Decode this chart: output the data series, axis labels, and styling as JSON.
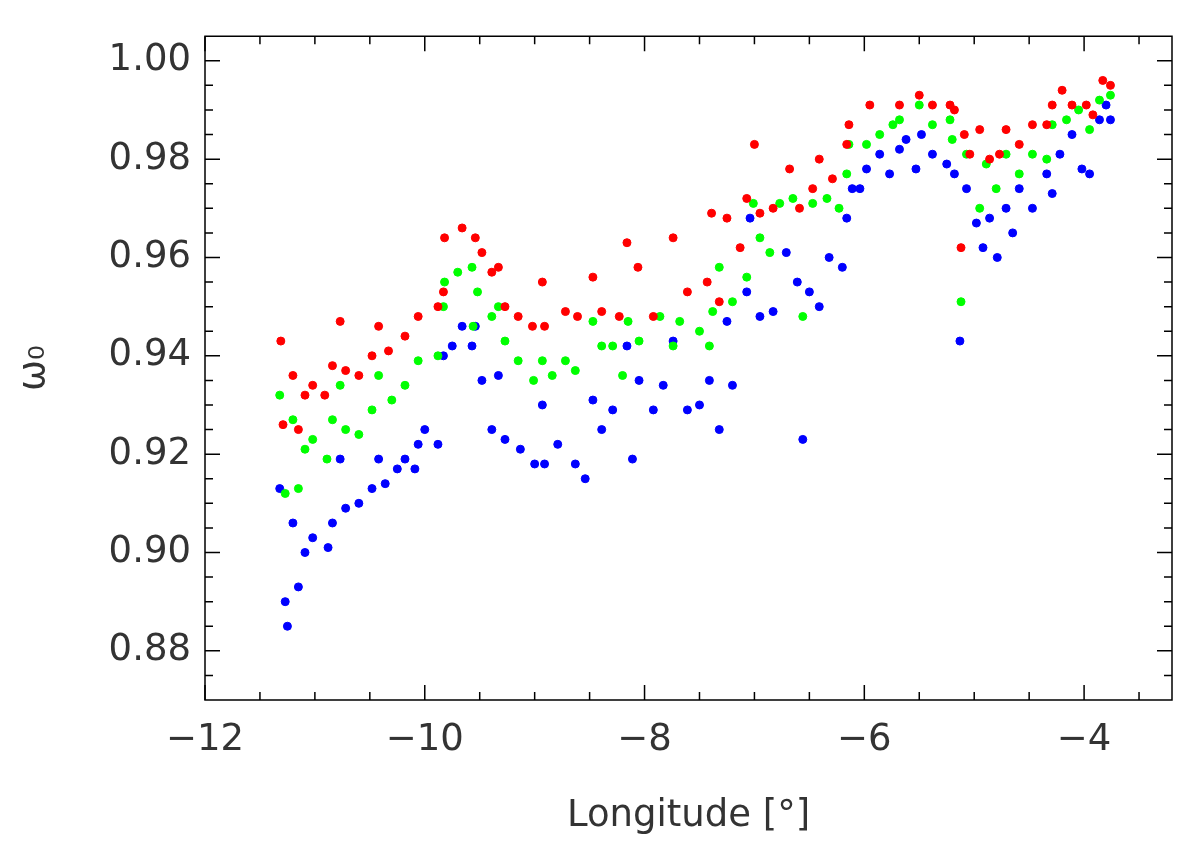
{
  "chart_data": {
    "type": "scatter",
    "xlabel": "Longitude [°]",
    "ylabel": "ω₀",
    "marker": "circle",
    "xlim": [
      -12,
      -3.2
    ],
    "ylim": [
      0.87,
      1.005
    ],
    "xticks": [
      {
        "value": -12,
        "label": "−12"
      },
      {
        "value": -11.5,
        "label": null
      },
      {
        "value": -11,
        "label": null
      },
      {
        "value": -10.5,
        "label": null
      },
      {
        "value": -10,
        "label": "−10"
      },
      {
        "value": -9.5,
        "label": null
      },
      {
        "value": -9,
        "label": null
      },
      {
        "value": -8.5,
        "label": null
      },
      {
        "value": -8,
        "label": "−8"
      },
      {
        "value": -7.5,
        "label": null
      },
      {
        "value": -7,
        "label": null
      },
      {
        "value": -6.5,
        "label": null
      },
      {
        "value": -6,
        "label": "−6"
      },
      {
        "value": -5.5,
        "label": null
      },
      {
        "value": -5,
        "label": null
      },
      {
        "value": -4.5,
        "label": null
      },
      {
        "value": -4,
        "label": "−4"
      },
      {
        "value": -3.5,
        "label": null
      }
    ],
    "yticks": [
      {
        "value": 0.875,
        "label": null
      },
      {
        "value": 0.88,
        "label": "0.88"
      },
      {
        "value": 0.885,
        "label": null
      },
      {
        "value": 0.89,
        "label": null
      },
      {
        "value": 0.895,
        "label": null
      },
      {
        "value": 0.9,
        "label": "0.90"
      },
      {
        "value": 0.905,
        "label": null
      },
      {
        "value": 0.91,
        "label": null
      },
      {
        "value": 0.915,
        "label": null
      },
      {
        "value": 0.92,
        "label": "0.92"
      },
      {
        "value": 0.925,
        "label": null
      },
      {
        "value": 0.93,
        "label": null
      },
      {
        "value": 0.935,
        "label": null
      },
      {
        "value": 0.94,
        "label": "0.94"
      },
      {
        "value": 0.945,
        "label": null
      },
      {
        "value": 0.95,
        "label": null
      },
      {
        "value": 0.955,
        "label": null
      },
      {
        "value": 0.96,
        "label": "0.96"
      },
      {
        "value": 0.965,
        "label": null
      },
      {
        "value": 0.97,
        "label": null
      },
      {
        "value": 0.975,
        "label": null
      },
      {
        "value": 0.98,
        "label": "0.98"
      },
      {
        "value": 0.985,
        "label": null
      },
      {
        "value": 0.99,
        "label": null
      },
      {
        "value": 0.995,
        "label": null
      },
      {
        "value": 1,
        "label": "1.00"
      }
    ],
    "series": [
      {
        "color": "#ff0000",
        "x": [
          -11.31,
          -11.29,
          -11.2,
          -11.15,
          -11.09,
          -11.02,
          -10.91,
          -10.84,
          -10.77,
          -10.72,
          -10.6,
          -10.48,
          -10.42,
          -10.33,
          -10.18,
          -10.06,
          -9.88,
          -9.83,
          -9.82,
          -9.66,
          -9.54,
          -9.48,
          -9.39,
          -9.33,
          -9.27,
          -9.15,
          -9.02,
          -8.93,
          -8.91,
          -8.72,
          -8.61,
          -8.47,
          -8.39,
          -8.23,
          -8.16,
          -8.06,
          -7.92,
          -7.74,
          -7.61,
          -7.43,
          -7.39,
          -7.32,
          -7.25,
          -7.13,
          -7.07,
          -7.0,
          -6.95,
          -6.83,
          -6.68,
          -6.59,
          -6.47,
          -6.41,
          -6.29,
          -6.16,
          -6.14,
          -5.95,
          -5.68,
          -5.5,
          -5.38,
          -5.22,
          -5.18,
          -5.12,
          -5.09,
          -5.04,
          -4.95,
          -4.86,
          -4.77,
          -4.71,
          -4.59,
          -4.47,
          -4.34,
          -4.29,
          -4.2,
          -4.11,
          -3.98,
          -3.92,
          -3.83,
          -3.76
        ],
        "values": [
          0.943,
          0.926,
          0.936,
          0.925,
          0.932,
          0.934,
          0.932,
          0.938,
          0.947,
          0.937,
          0.936,
          0.94,
          0.946,
          0.941,
          0.944,
          0.948,
          0.95,
          0.953,
          0.964,
          0.966,
          0.964,
          0.961,
          0.957,
          0.958,
          0.95,
          0.948,
          0.946,
          0.955,
          0.946,
          0.949,
          0.948,
          0.956,
          0.949,
          0.948,
          0.963,
          0.958,
          0.948,
          0.964,
          0.953,
          0.955,
          0.969,
          0.951,
          0.968,
          0.962,
          0.972,
          0.983,
          0.969,
          0.97,
          0.978,
          0.97,
          0.974,
          0.98,
          0.976,
          0.983,
          0.987,
          0.991,
          0.991,
          0.993,
          0.991,
          0.991,
          0.99,
          0.962,
          0.985,
          0.981,
          0.986,
          0.98,
          0.981,
          0.986,
          0.983,
          0.987,
          0.987,
          0.991,
          0.994,
          0.991,
          0.991,
          0.989,
          0.996,
          0.995
        ]
      },
      {
        "color": "#00ff00",
        "x": [
          -11.32,
          -11.27,
          -11.2,
          -11.15,
          -11.09,
          -11.02,
          -10.89,
          -10.84,
          -10.77,
          -10.72,
          -10.6,
          -10.48,
          -10.42,
          -10.3,
          -10.18,
          -10.06,
          -9.88,
          -9.83,
          -9.82,
          -9.7,
          -9.57,
          -9.56,
          -9.52,
          -9.39,
          -9.33,
          -9.27,
          -9.15,
          -9.01,
          -8.93,
          -8.84,
          -8.72,
          -8.63,
          -8.47,
          -8.39,
          -8.29,
          -8.2,
          -8.15,
          -8.05,
          -7.86,
          -7.74,
          -7.68,
          -7.5,
          -7.41,
          -7.38,
          -7.32,
          -7.2,
          -7.07,
          -7.01,
          -6.95,
          -6.86,
          -6.77,
          -6.65,
          -6.56,
          -6.47,
          -6.34,
          -6.23,
          -6.16,
          -6.14,
          -5.98,
          -5.86,
          -5.74,
          -5.68,
          -5.5,
          -5.38,
          -5.22,
          -5.2,
          -5.12,
          -5.07,
          -4.95,
          -4.89,
          -4.8,
          -4.71,
          -4.59,
          -4.47,
          -4.34,
          -4.29,
          -4.16,
          -4.05,
          -3.95,
          -3.86,
          -3.76
        ],
        "values": [
          0.932,
          0.912,
          0.927,
          0.913,
          0.921,
          0.923,
          0.919,
          0.927,
          0.934,
          0.925,
          0.924,
          0.929,
          0.936,
          0.931,
          0.934,
          0.939,
          0.94,
          0.95,
          0.955,
          0.957,
          0.958,
          0.946,
          0.953,
          0.948,
          0.95,
          0.943,
          0.939,
          0.935,
          0.939,
          0.936,
          0.939,
          0.937,
          0.947,
          0.942,
          0.942,
          0.936,
          0.947,
          0.943,
          0.948,
          0.942,
          0.947,
          0.945,
          0.942,
          0.949,
          0.958,
          0.951,
          0.956,
          0.971,
          0.964,
          0.961,
          0.971,
          0.972,
          0.948,
          0.971,
          0.972,
          0.97,
          0.977,
          0.983,
          0.983,
          0.985,
          0.987,
          0.988,
          0.991,
          0.987,
          0.988,
          0.984,
          0.951,
          0.981,
          0.97,
          0.979,
          0.974,
          0.981,
          0.977,
          0.981,
          0.98,
          0.987,
          0.988,
          0.99,
          0.986,
          0.992,
          0.993
        ]
      },
      {
        "color": "#0000ff",
        "x": [
          -11.32,
          -11.27,
          -11.25,
          -11.2,
          -11.15,
          -11.09,
          -11.02,
          -10.88,
          -10.84,
          -10.77,
          -10.72,
          -10.6,
          -10.48,
          -10.42,
          -10.36,
          -10.25,
          -10.18,
          -10.09,
          -10.06,
          -10.0,
          -9.88,
          -9.83,
          -9.75,
          -9.66,
          -9.57,
          -9.54,
          -9.48,
          -9.39,
          -9.33,
          -9.27,
          -9.13,
          -9.0,
          -8.93,
          -8.91,
          -8.79,
          -8.63,
          -8.54,
          -8.47,
          -8.39,
          -8.29,
          -8.16,
          -8.11,
          -8.05,
          -7.92,
          -7.83,
          -7.74,
          -7.61,
          -7.5,
          -7.41,
          -7.32,
          -7.25,
          -7.2,
          -7.07,
          -7.04,
          -6.95,
          -6.83,
          -6.71,
          -6.61,
          -6.56,
          -6.5,
          -6.41,
          -6.32,
          -6.2,
          -6.16,
          -6.11,
          -6.04,
          -5.98,
          -5.86,
          -5.77,
          -5.68,
          -5.62,
          -5.53,
          -5.48,
          -5.38,
          -5.25,
          -5.18,
          -5.13,
          -5.07,
          -4.98,
          -4.92,
          -4.86,
          -4.79,
          -4.71,
          -4.65,
          -4.59,
          -4.47,
          -4.34,
          -4.29,
          -4.22,
          -4.11,
          -4.02,
          -3.95,
          -3.86,
          -3.8,
          -3.76
        ],
        "values": [
          0.913,
          0.89,
          0.885,
          0.906,
          0.893,
          0.9,
          0.903,
          0.901,
          0.906,
          0.919,
          0.909,
          0.91,
          0.913,
          0.919,
          0.914,
          0.917,
          0.919,
          0.917,
          0.922,
          0.925,
          0.922,
          0.94,
          0.942,
          0.946,
          0.942,
          0.946,
          0.935,
          0.925,
          0.936,
          0.923,
          0.921,
          0.918,
          0.93,
          0.918,
          0.922,
          0.918,
          0.915,
          0.931,
          0.925,
          0.929,
          0.942,
          0.919,
          0.935,
          0.929,
          0.934,
          0.943,
          0.929,
          0.93,
          0.935,
          0.925,
          0.947,
          0.934,
          0.953,
          0.968,
          0.948,
          0.949,
          0.961,
          0.955,
          0.923,
          0.953,
          0.95,
          0.96,
          0.958,
          0.968,
          0.974,
          0.974,
          0.978,
          0.981,
          0.977,
          0.982,
          0.984,
          0.978,
          0.985,
          0.981,
          0.979,
          0.977,
          0.943,
          0.974,
          0.967,
          0.962,
          0.968,
          0.96,
          0.97,
          0.965,
          0.974,
          0.97,
          0.977,
          0.973,
          0.981,
          0.985,
          0.978,
          0.977,
          0.988,
          0.991,
          0.988
        ]
      }
    ]
  }
}
